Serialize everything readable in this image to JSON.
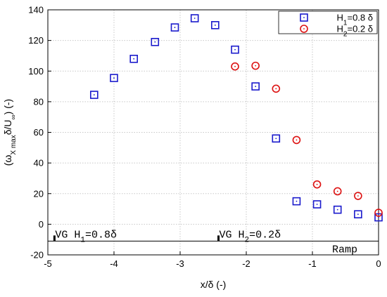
{
  "chart_data": {
    "type": "scatter",
    "xlabel": "x/δ (-)",
    "ylabel": "(ω",
    "ylabel_sub": "X max",
    "ylabel_tail": "δ/U",
    "ylabel_sub2": "∞",
    "ylabel_end": ") (-)",
    "xlim": [
      -5,
      0
    ],
    "ylim": [
      -20,
      140
    ],
    "xticks": [
      -5,
      -4,
      -3,
      -2,
      -1,
      0
    ],
    "yticks": [
      -20,
      0,
      20,
      40,
      60,
      80,
      100,
      120,
      140
    ],
    "grid": true,
    "legend_position": "top-right",
    "series": [
      {
        "name": "H1=0.8 δ",
        "name_parts": [
          "H",
          "1",
          "=0.8 δ"
        ],
        "marker": "square",
        "color": "#1a1acc",
        "x": [
          -4.3,
          -4.0,
          -3.7,
          -3.38,
          -3.08,
          -2.78,
          -2.47,
          -2.17,
          -1.86,
          -1.55,
          -1.24,
          -0.93,
          -0.62,
          -0.31,
          0.0
        ],
        "y": [
          84.5,
          95.5,
          108,
          119,
          128.5,
          134.5,
          130,
          114,
          90,
          56,
          15,
          13,
          9.5,
          6.5,
          4.5
        ]
      },
      {
        "name": "H2=0.2 δ",
        "name_parts": [
          "H",
          "2",
          "=0.2 δ"
        ],
        "marker": "circle",
        "color": "#dd1111",
        "x": [
          -2.17,
          -1.86,
          -1.55,
          -1.24,
          -0.93,
          -0.62,
          -0.31,
          0.0
        ],
        "y": [
          103,
          103.5,
          88.5,
          55,
          26,
          21.5,
          18.5,
          7.5
        ]
      }
    ],
    "annotations": {
      "vg1_prefix": "VG H",
      "vg1_sub": "1",
      "vg1_suffix": "=0.8δ",
      "vg1_x": -4.9,
      "vg2_prefix": "VG H",
      "vg2_sub": "2",
      "vg2_suffix": "=0.2δ",
      "vg2_x": -2.42,
      "ramp": "Ramp",
      "baseline_y": -11
    }
  }
}
